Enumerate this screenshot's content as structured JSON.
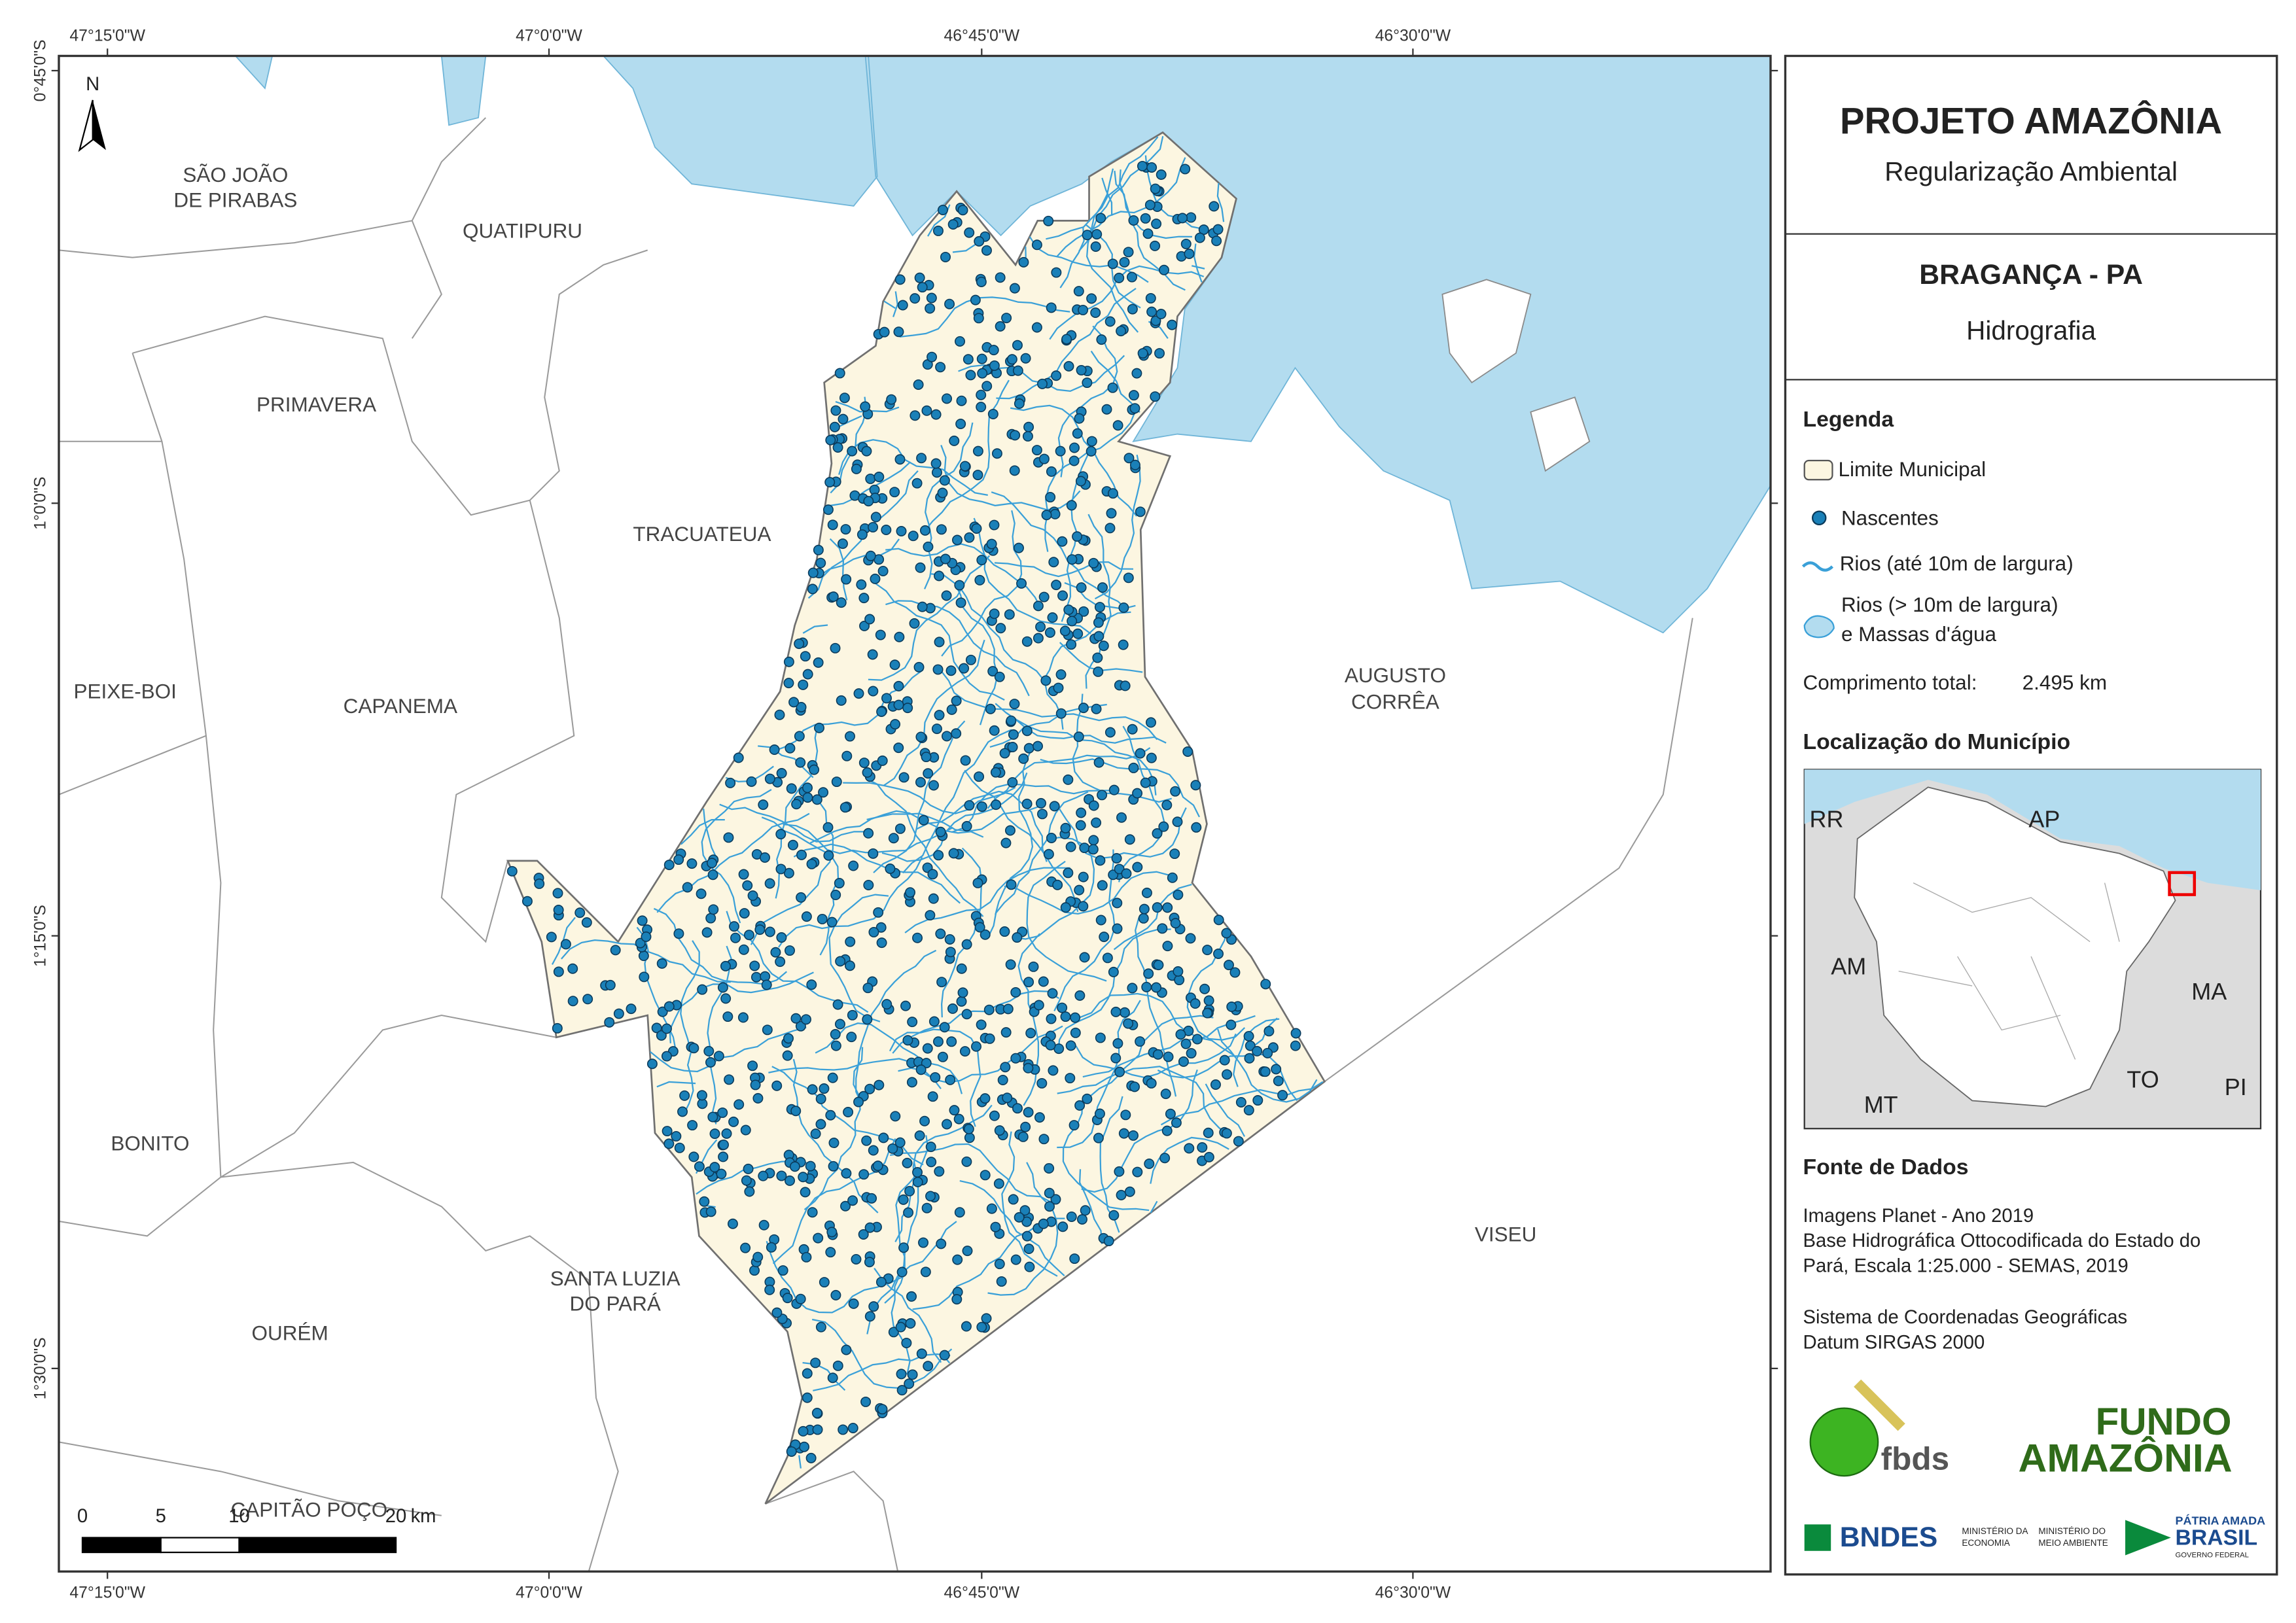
{
  "header": {
    "title": "PROJETO AMAZÔNIA",
    "subtitle": "Regularização Ambiental"
  },
  "location": {
    "title": "BRAGANÇA - PA",
    "theme": "Hidrografia"
  },
  "legend": {
    "title": "Legenda",
    "items": [
      [
        "Limite Municipal"
      ],
      [
        "Nascentes"
      ],
      [
        "Rios (até 10m de largura)"
      ],
      [
        "Rios (> 10m de largura)",
        "e Massas d'água"
      ]
    ],
    "total_length_label": "Comprimento total:",
    "total_length": "2.495 km"
  },
  "locator": {
    "title": "Localização do Município",
    "states": [
      "RR",
      "AP",
      "AM",
      "MA",
      "TO",
      "MT",
      "PI"
    ]
  },
  "sources": {
    "title": "Fonte de Dados",
    "lines": [
      "Imagens Planet - Ano 2019",
      "Base Hidrográfica Ottocodificada do Estado do",
      "Pará, Escala 1:25.000 - SEMAS, 2019",
      "Sistema de Coordenadas Geográficas",
      "Datum SIRGAS 2000"
    ]
  },
  "map": {
    "north": "N",
    "longitudes": [
      "47°15'0\"W",
      "47°0'0\"W",
      "46°45'0\"W",
      "46°30'0\"W"
    ],
    "latitudes": [
      "0°45'0\"S",
      "1°0'0\"S",
      "1°15'0\"S",
      "1°30'0\"S"
    ],
    "municipalities": [
      [
        "SÃO JOÃO",
        "DE PIRABAS"
      ],
      [
        "QUATIPURU"
      ],
      [
        "PRIMAVERA"
      ],
      [
        "TRACUATEUA"
      ],
      [
        "PEIXE-BOI"
      ],
      [
        "CAPANEMA"
      ],
      [
        "AUGUSTO",
        "CORRÊA"
      ],
      [
        "BONITO"
      ],
      [
        "SANTA LUZIA",
        "DO PARÁ"
      ],
      [
        "VISEU"
      ],
      [
        "OURÉM"
      ],
      [
        "CAPITÃO POÇO"
      ]
    ],
    "scale_bar": {
      "ticks": [
        0,
        5,
        10,
        20
      ],
      "unit": "km"
    }
  },
  "logos": {
    "fbds": "fbds",
    "fundo": "FUNDO",
    "amazonia": "AMAZÔNIA",
    "bndes": "BNDES",
    "min_economia": [
      "MINISTÉRIO DA",
      "ECONOMIA"
    ],
    "min_meio": [
      "MINISTÉRIO DO",
      "MEIO AMBIENTE"
    ],
    "patria": "PÁTRIA AMADA",
    "brasil": "BRASIL",
    "governo": "GOVERNO FEDERAL"
  }
}
